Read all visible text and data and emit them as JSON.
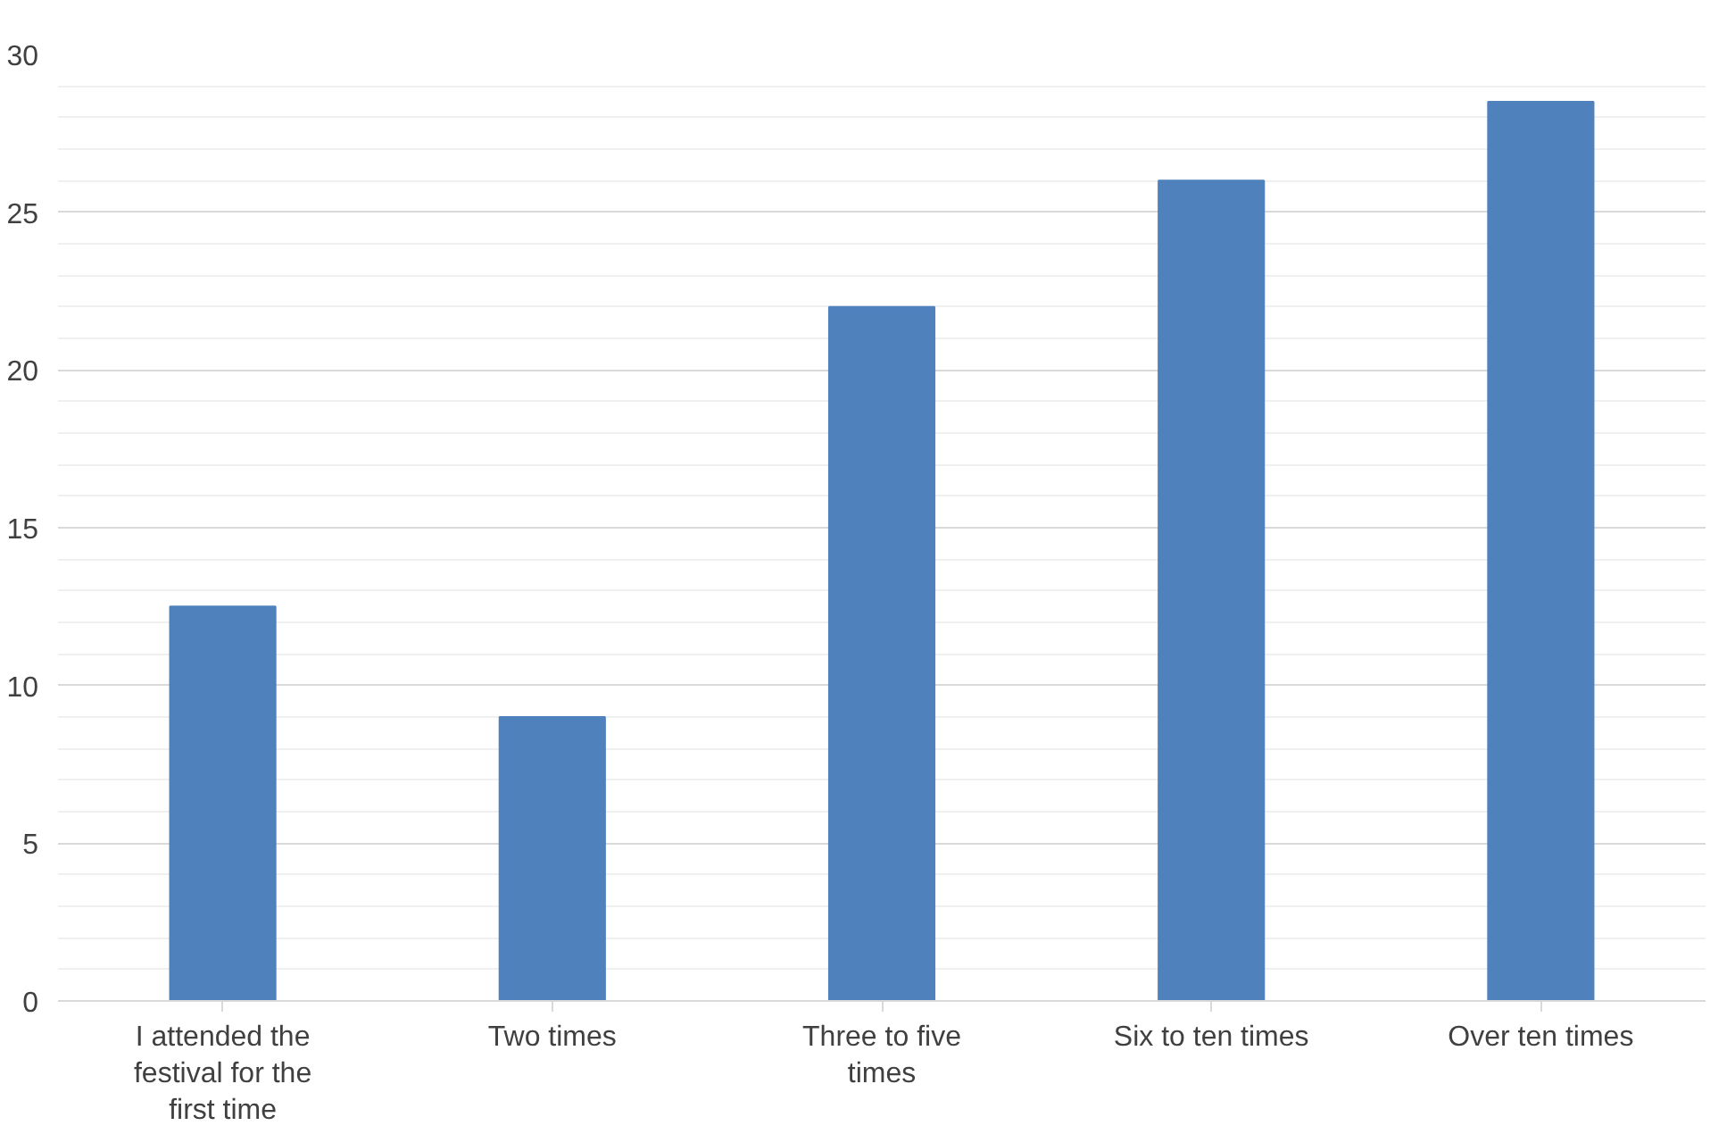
{
  "chart_data": {
    "type": "bar",
    "categories": [
      "I attended the festival for the first time",
      "Two times",
      "Three to five times",
      "Six to ten times",
      "Over ten times"
    ],
    "values": [
      12.5,
      9,
      22,
      26,
      28.5
    ],
    "color": "#4f81bd",
    "ylim": [
      0,
      30
    ],
    "yticks": [
      0,
      5,
      10,
      15,
      20,
      25,
      30
    ],
    "grid": "y"
  }
}
